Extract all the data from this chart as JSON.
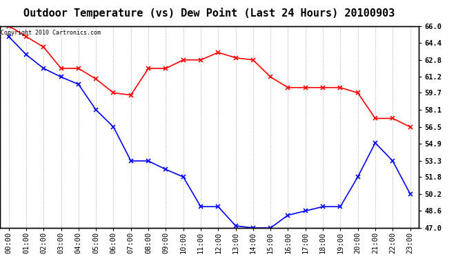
{
  "title": "Outdoor Temperature (vs) Dew Point (Last 24 Hours) 20100903",
  "copyright": "Copyright 2010 Cartronics.com",
  "x_labels": [
    "00:00",
    "01:00",
    "02:00",
    "03:00",
    "04:00",
    "05:00",
    "06:00",
    "07:00",
    "08:00",
    "09:00",
    "10:00",
    "11:00",
    "12:00",
    "13:00",
    "14:00",
    "15:00",
    "16:00",
    "17:00",
    "18:00",
    "19:00",
    "20:00",
    "21:00",
    "22:00",
    "23:00"
  ],
  "temp_data": [
    65.0,
    63.3,
    62.0,
    61.2,
    60.5,
    58.1,
    56.5,
    53.3,
    53.3,
    52.5,
    51.8,
    49.0,
    49.0,
    47.2,
    47.0,
    47.0,
    48.2,
    48.6,
    49.0,
    49.0,
    51.8,
    55.0,
    53.3,
    50.2
  ],
  "dew_data": [
    66.0,
    65.0,
    64.0,
    62.0,
    62.0,
    61.0,
    59.7,
    59.5,
    62.0,
    62.0,
    62.8,
    62.8,
    63.5,
    63.0,
    62.8,
    61.2,
    60.2,
    60.2,
    60.2,
    60.2,
    59.7,
    57.3,
    57.3,
    56.5
  ],
  "temp_color": "#0000FF",
  "dew_color": "#FF0000",
  "bg_color": "#FFFFFF",
  "grid_color": "#BBBBBB",
  "ylim": [
    47.0,
    66.0
  ],
  "yticks": [
    47.0,
    48.6,
    50.2,
    51.8,
    53.3,
    54.9,
    56.5,
    58.1,
    59.7,
    61.2,
    62.8,
    64.4,
    66.0
  ],
  "title_fontsize": 11,
  "label_fontsize": 7.5
}
